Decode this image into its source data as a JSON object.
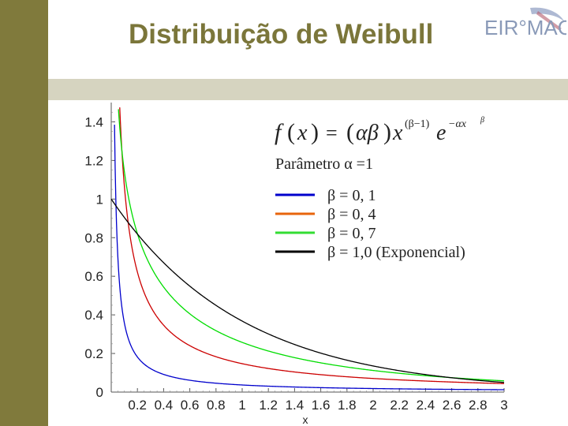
{
  "slide": {
    "title": "Distribuição de Weibull",
    "logo_text": "EIR°MAC",
    "colors": {
      "sidebar": "#807a3c",
      "band": "#d6d4c0",
      "title": "#7b763a"
    }
  },
  "chart_data": {
    "type": "line",
    "title": "",
    "xlabel": "x",
    "ylabel": "",
    "xlim": [
      0,
      3
    ],
    "ylim": [
      0,
      1.5
    ],
    "x_ticks": [
      "0.2",
      "0.4",
      "0.6",
      "0.8",
      "1",
      "1.2",
      "1.4",
      "1.6",
      "1.8",
      "2",
      "2.2",
      "2.4",
      "2.6",
      "2.8",
      "3"
    ],
    "y_ticks": [
      "0",
      "0.2",
      "0.4",
      "0.6",
      "0.8",
      "1",
      "1.2",
      "1.4"
    ],
    "grid": false,
    "legend_position": "top-right",
    "annotation": {
      "formula_lhs": "f",
      "formula_x": "x",
      "formula_eq": "=",
      "formula_ab": "αβ",
      "formula_exp1": "(β−1)",
      "formula_e": "e",
      "formula_exp2": "−αx",
      "formula_exp2_pow": "β",
      "param_text": "Parâmetro α =1"
    },
    "series": [
      {
        "label": "β = 0, 1",
        "color": "#0000cc",
        "alpha": 1,
        "beta": 0.1,
        "x": [
          0.05,
          0.1,
          0.2,
          0.3,
          0.5,
          0.8,
          1.0,
          1.5,
          2.0,
          2.5,
          3.0
        ],
        "y": [
          0.56,
          0.29,
          0.14,
          0.09,
          0.06,
          0.04,
          0.03,
          0.02,
          0.02,
          0.01,
          0.01
        ]
      },
      {
        "label": "β = 0, 4",
        "color": "#cc0000",
        "alpha": 1,
        "beta": 0.4,
        "x": [
          0.05,
          0.1,
          0.2,
          0.3,
          0.5,
          0.8,
          1.0,
          1.5,
          2.0,
          2.5,
          3.0
        ],
        "y": [
          1.41,
          0.93,
          0.62,
          0.48,
          0.35,
          0.25,
          0.22,
          0.15,
          0.12,
          0.09,
          0.07
        ]
      },
      {
        "label": "β = 0, 7",
        "color": "#00dd00",
        "alpha": 1,
        "beta": 0.7,
        "x": [
          0.05,
          0.1,
          0.2,
          0.3,
          0.5,
          0.8,
          1.0,
          1.5,
          2.0,
          2.5,
          3.0
        ],
        "y": [
          1.5,
          1.2,
          0.87,
          0.7,
          0.53,
          0.39,
          0.34,
          0.24,
          0.18,
          0.13,
          0.09
        ]
      },
      {
        "label": "β = 1,0 (Exponencial)",
        "color": "#000000",
        "alpha": 1,
        "beta": 1.0,
        "x": [
          0.0,
          0.2,
          0.5,
          0.8,
          1.0,
          1.5,
          2.0,
          2.5,
          3.0
        ],
        "y": [
          1.0,
          0.82,
          0.61,
          0.45,
          0.37,
          0.22,
          0.14,
          0.08,
          0.05
        ]
      }
    ],
    "legend_swatch_colors": [
      "#0000cc",
      "#e8650c",
      "#33dd33",
      "#000000"
    ]
  }
}
